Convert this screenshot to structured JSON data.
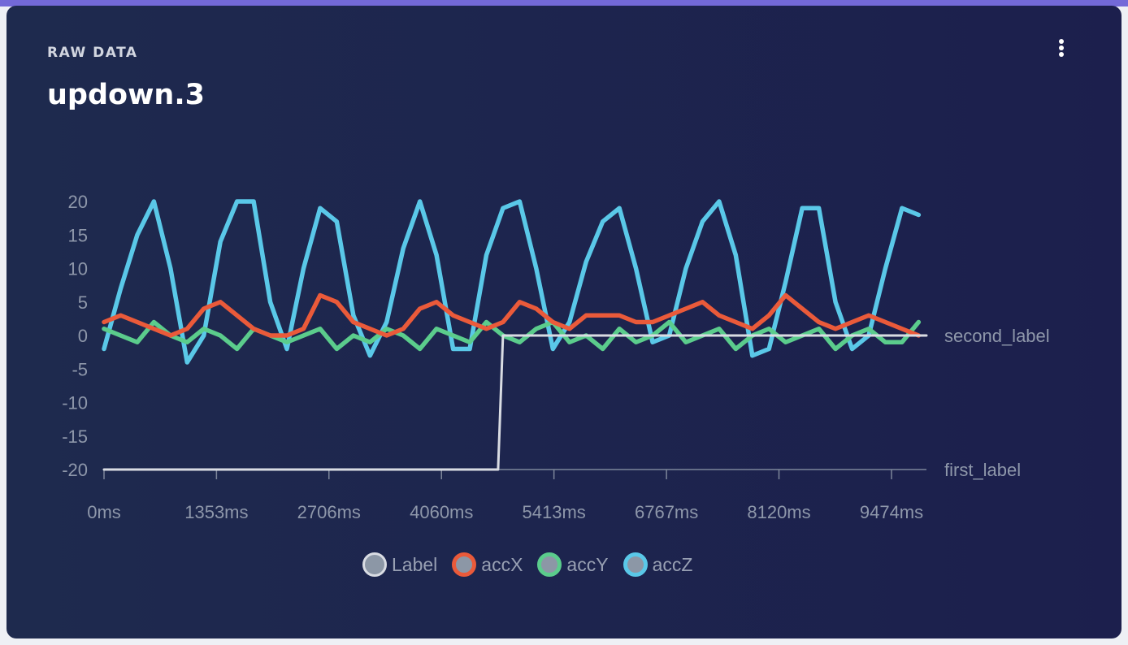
{
  "header": {
    "kicker": "RAW DATA",
    "title": "updown.3",
    "menu_icon": "more-vertical-icon"
  },
  "chart_data": {
    "type": "line",
    "title": "updown.3",
    "xlabel": "",
    "ylabel": "",
    "xlim": [
      0,
      9900
    ],
    "ylim": [
      -20,
      20
    ],
    "yticks": [
      "20",
      "15",
      "10",
      "5",
      "0",
      "-5",
      "-10",
      "-15",
      "-20"
    ],
    "ytick_values": [
      20,
      15,
      10,
      5,
      0,
      -5,
      -10,
      -15,
      -20
    ],
    "xticks": [
      "0ms",
      "1353ms",
      "2706ms",
      "4060ms",
      "5413ms",
      "6767ms",
      "8120ms",
      "9474ms"
    ],
    "xtick_values": [
      0,
      1353,
      2706,
      4060,
      5413,
      6767,
      8120,
      9474
    ],
    "right_labels": [
      {
        "text": "second_label",
        "value": 0
      },
      {
        "text": "first_label",
        "value": -20
      }
    ],
    "x_step_ms": 200,
    "series": [
      {
        "name": "Label",
        "color": "#d9dce3",
        "values": "step",
        "step": {
          "at": 4780,
          "from": -20,
          "to": 0
        }
      },
      {
        "name": "accX",
        "color": "#ea5a3a",
        "values": [
          2,
          3,
          2,
          1,
          0,
          1,
          4,
          5,
          3,
          1,
          0,
          0,
          1,
          6,
          5,
          2,
          1,
          0,
          1,
          4,
          5,
          3,
          2,
          1,
          2,
          5,
          4,
          2,
          1,
          3,
          3,
          3,
          2,
          2,
          3,
          4,
          5,
          3,
          2,
          1,
          3,
          6,
          4,
          2,
          1,
          2,
          3,
          2,
          1,
          0
        ]
      },
      {
        "name": "accY",
        "color": "#5bcc8c",
        "values": [
          1,
          0,
          -1,
          2,
          0,
          -1,
          1,
          0,
          -2,
          1,
          0,
          -1,
          0,
          1,
          -2,
          0,
          -1,
          1,
          0,
          -2,
          1,
          0,
          -1,
          2,
          0,
          -1,
          1,
          2,
          -1,
          0,
          -2,
          1,
          -1,
          0,
          2,
          -1,
          0,
          1,
          -2,
          0,
          1,
          -1,
          0,
          1,
          -2,
          0,
          1,
          -1,
          -1,
          2
        ]
      },
      {
        "name": "accZ",
        "color": "#5ac8e8",
        "values": [
          -2,
          7,
          15,
          20,
          10,
          -4,
          0,
          14,
          20,
          20,
          5,
          -2,
          10,
          19,
          17,
          3,
          -3,
          2,
          13,
          20,
          12,
          -2,
          -2,
          12,
          19,
          20,
          10,
          -2,
          2,
          11,
          17,
          19,
          10,
          -1,
          0,
          10,
          17,
          20,
          12,
          -3,
          -2,
          8,
          19,
          19,
          5,
          -2,
          0,
          10,
          19,
          18
        ]
      }
    ],
    "legend": {
      "position": "bottom",
      "entries": [
        "Label",
        "accX",
        "accY",
        "accZ"
      ]
    },
    "grid": false
  }
}
